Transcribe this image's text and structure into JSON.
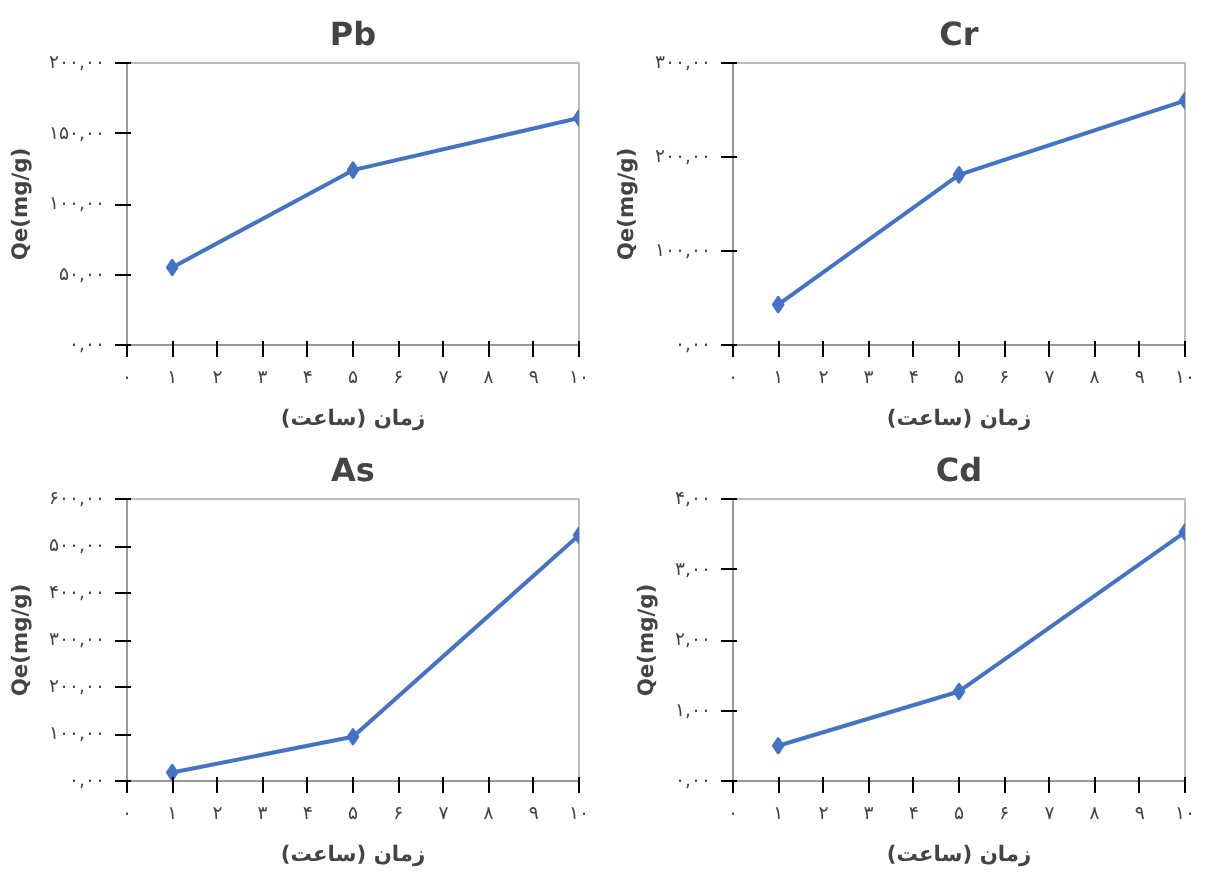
{
  "chart_data": [
    {
      "type": "line",
      "title": "Pb",
      "xlabel": "زمان (ساعت)",
      "ylabel": "Qe(mg/g)",
      "x": [
        1,
        5,
        10
      ],
      "series": [
        {
          "color": "#4472c4",
          "values": [
            55,
            124,
            161
          ]
        }
      ],
      "marker": "diamond",
      "grid": false,
      "xlim": [
        0,
        10
      ],
      "xticks": [
        {
          "value": 0,
          "label": "۰"
        },
        {
          "value": 1,
          "label": "۱"
        },
        {
          "value": 2,
          "label": "۲"
        },
        {
          "value": 3,
          "label": "۳"
        },
        {
          "value": 4,
          "label": "۴"
        },
        {
          "value": 5,
          "label": "۵"
        },
        {
          "value": 6,
          "label": "۶"
        },
        {
          "value": 7,
          "label": "۷"
        },
        {
          "value": 8,
          "label": "۸"
        },
        {
          "value": 9,
          "label": "۹"
        },
        {
          "value": 10,
          "label": "۱۰"
        }
      ],
      "ylim": [
        0,
        200
      ],
      "yticks": [
        {
          "value": 0,
          "label": "۰,۰۰"
        },
        {
          "value": 50,
          "label": "۵۰,۰۰"
        },
        {
          "value": 100,
          "label": "۱۰۰,۰۰"
        },
        {
          "value": 150,
          "label": "۱۵۰,۰۰"
        },
        {
          "value": 200,
          "label": "۲۰۰,۰۰"
        }
      ]
    },
    {
      "type": "line",
      "title": "Cr",
      "xlabel": "زمان (ساعت)",
      "ylabel": "Qe(mg/g)",
      "x": [
        1,
        5,
        10
      ],
      "series": [
        {
          "color": "#4472c4",
          "values": [
            43,
            181,
            260
          ]
        }
      ],
      "marker": "diamond",
      "grid": false,
      "xlim": [
        0,
        10
      ],
      "xticks": [
        {
          "value": 0,
          "label": "۰"
        },
        {
          "value": 1,
          "label": "۱"
        },
        {
          "value": 2,
          "label": "۲"
        },
        {
          "value": 3,
          "label": "۳"
        },
        {
          "value": 4,
          "label": "۴"
        },
        {
          "value": 5,
          "label": "۵"
        },
        {
          "value": 6,
          "label": "۶"
        },
        {
          "value": 7,
          "label": "۷"
        },
        {
          "value": 8,
          "label": "۸"
        },
        {
          "value": 9,
          "label": "۹"
        },
        {
          "value": 10,
          "label": "۱۰"
        }
      ],
      "ylim": [
        0,
        300
      ],
      "yticks": [
        {
          "value": 0,
          "label": "۰,۰۰"
        },
        {
          "value": 100,
          "label": "۱۰۰,۰۰"
        },
        {
          "value": 200,
          "label": "۲۰۰,۰۰"
        },
        {
          "value": 300,
          "label": "۳۰۰,۰۰"
        }
      ]
    },
    {
      "type": "line",
      "title": "As",
      "xlabel": "زمان (ساعت)",
      "ylabel": "Qe(mg/g)",
      "x": [
        1,
        5,
        10
      ],
      "series": [
        {
          "color": "#4472c4",
          "values": [
            18,
            94,
            523
          ]
        }
      ],
      "marker": "diamond",
      "grid": false,
      "xlim": [
        0,
        10
      ],
      "xticks": [
        {
          "value": 0,
          "label": "۰"
        },
        {
          "value": 1,
          "label": "۱"
        },
        {
          "value": 2,
          "label": "۲"
        },
        {
          "value": 3,
          "label": "۳"
        },
        {
          "value": 4,
          "label": "۴"
        },
        {
          "value": 5,
          "label": "۵"
        },
        {
          "value": 6,
          "label": "۶"
        },
        {
          "value": 7,
          "label": "۷"
        },
        {
          "value": 8,
          "label": "۸"
        },
        {
          "value": 9,
          "label": "۹"
        },
        {
          "value": 10,
          "label": "۱۰"
        }
      ],
      "ylim": [
        0,
        600
      ],
      "yticks": [
        {
          "value": 0,
          "label": "۰,۰۰"
        },
        {
          "value": 100,
          "label": "۱۰۰,۰۰"
        },
        {
          "value": 200,
          "label": "۲۰۰,۰۰"
        },
        {
          "value": 300,
          "label": "۳۰۰,۰۰"
        },
        {
          "value": 400,
          "label": "۴۰۰,۰۰"
        },
        {
          "value": 500,
          "label": "۵۰۰,۰۰"
        },
        {
          "value": 600,
          "label": "۶۰۰,۰۰"
        }
      ]
    },
    {
      "type": "line",
      "title": "Cd",
      "xlabel": "زمان (ساعت)",
      "ylabel": "Qe(mg/g)",
      "x": [
        1,
        5,
        10
      ],
      "series": [
        {
          "color": "#4472c4",
          "values": [
            0.5,
            1.27,
            3.53
          ]
        }
      ],
      "marker": "diamond",
      "grid": false,
      "xlim": [
        0,
        10
      ],
      "xticks": [
        {
          "value": 0,
          "label": "۰"
        },
        {
          "value": 1,
          "label": "۱"
        },
        {
          "value": 2,
          "label": "۲"
        },
        {
          "value": 3,
          "label": "۳"
        },
        {
          "value": 4,
          "label": "۴"
        },
        {
          "value": 5,
          "label": "۵"
        },
        {
          "value": 6,
          "label": "۶"
        },
        {
          "value": 7,
          "label": "۷"
        },
        {
          "value": 8,
          "label": "۸"
        },
        {
          "value": 9,
          "label": "۹"
        },
        {
          "value": 10,
          "label": "۱۰"
        }
      ],
      "ylim": [
        0,
        4
      ],
      "yticks": [
        {
          "value": 0,
          "label": "۰,۰۰"
        },
        {
          "value": 1,
          "label": "۱,۰۰"
        },
        {
          "value": 2,
          "label": "۲,۰۰"
        },
        {
          "value": 3,
          "label": "۳,۰۰"
        },
        {
          "value": 4,
          "label": "۴,۰۰"
        }
      ]
    }
  ]
}
